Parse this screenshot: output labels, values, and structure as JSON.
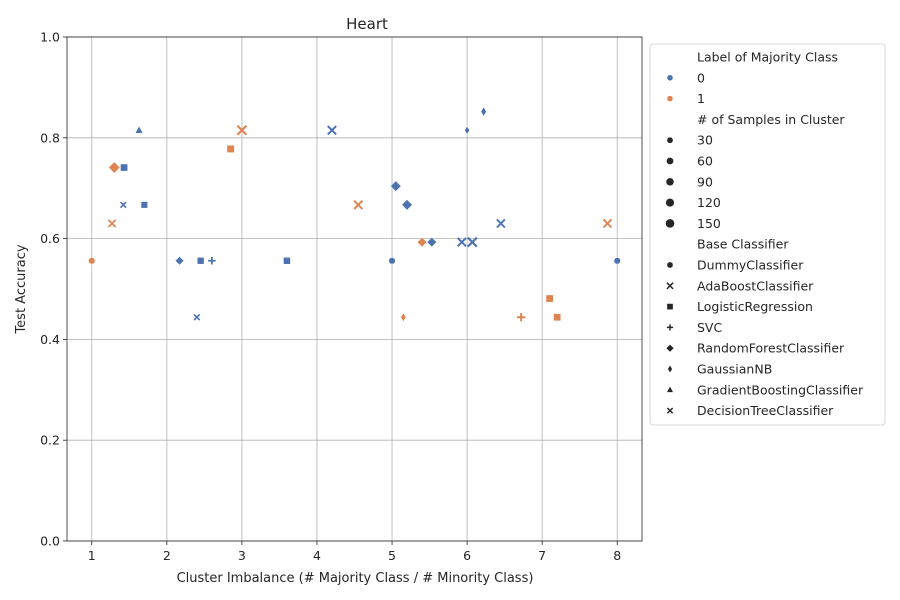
{
  "chart_data": {
    "type": "scatter",
    "title": "Heart",
    "xlabel": "Cluster Imbalance (# Majority Class / # Minority Class)",
    "ylabel": "Test Accuracy",
    "xlim": [
      0.67,
      8.33
    ],
    "ylim": [
      0.0,
      1.0
    ],
    "xticks": [
      1,
      2,
      3,
      4,
      5,
      6,
      7,
      8
    ],
    "yticks": [
      0.0,
      0.2,
      0.4,
      0.6,
      0.8,
      1.0
    ],
    "grid": true,
    "legend": {
      "placement": "outside-right",
      "hue_title": "Label of Majority Class",
      "hue": [
        {
          "label": "0",
          "color": "#4c72b0"
        },
        {
          "label": "1",
          "color": "#dd8452"
        }
      ],
      "size_title": "# of Samples in Cluster",
      "sizes": [
        "30",
        "60",
        "90",
        "120",
        "150"
      ],
      "style_title": "Base Classifier",
      "styles": [
        {
          "label": "DummyClassifier",
          "marker": "circle"
        },
        {
          "label": "AdaBoostClassifier",
          "marker": "x"
        },
        {
          "label": "LogisticRegression",
          "marker": "square"
        },
        {
          "label": "SVC",
          "marker": "plus"
        },
        {
          "label": "RandomForestClassifier",
          "marker": "diamond"
        },
        {
          "label": "GaussianNB",
          "marker": "thin-diamond"
        },
        {
          "label": "GradientBoostingClassifier",
          "marker": "triangle"
        },
        {
          "label": "DecisionTreeClassifier",
          "marker": "small-x"
        }
      ]
    },
    "points": [
      {
        "x": 1.0,
        "y": 0.556,
        "hue": "1",
        "n": 30,
        "clf": "DummyClassifier"
      },
      {
        "x": 1.27,
        "y": 0.63,
        "hue": "1",
        "n": 45,
        "clf": "AdaBoostClassifier"
      },
      {
        "x": 1.3,
        "y": 0.741,
        "hue": "1",
        "n": 120,
        "clf": "RandomForestClassifier"
      },
      {
        "x": 1.42,
        "y": 0.667,
        "hue": "0",
        "n": 30,
        "clf": "DecisionTreeClassifier"
      },
      {
        "x": 1.43,
        "y": 0.741,
        "hue": "0",
        "n": 45,
        "clf": "LogisticRegression"
      },
      {
        "x": 1.63,
        "y": 0.815,
        "hue": "0",
        "n": 45,
        "clf": "GradientBoostingClassifier"
      },
      {
        "x": 1.7,
        "y": 0.667,
        "hue": "0",
        "n": 30,
        "clf": "LogisticRegression"
      },
      {
        "x": 2.17,
        "y": 0.556,
        "hue": "0",
        "n": 35,
        "clf": "RandomForestClassifier"
      },
      {
        "x": 2.4,
        "y": 0.444,
        "hue": "0",
        "n": 30,
        "clf": "DecisionTreeClassifier"
      },
      {
        "x": 2.45,
        "y": 0.556,
        "hue": "0",
        "n": 35,
        "clf": "LogisticRegression"
      },
      {
        "x": 2.6,
        "y": 0.556,
        "hue": "0",
        "n": 55,
        "clf": "SVC"
      },
      {
        "x": 2.85,
        "y": 0.778,
        "hue": "1",
        "n": 55,
        "clf": "LogisticRegression"
      },
      {
        "x": 3.0,
        "y": 0.815,
        "hue": "1",
        "n": 120,
        "clf": "AdaBoostClassifier"
      },
      {
        "x": 3.6,
        "y": 0.556,
        "hue": "0",
        "n": 40,
        "clf": "LogisticRegression"
      },
      {
        "x": 4.2,
        "y": 0.815,
        "hue": "0",
        "n": 90,
        "clf": "AdaBoostClassifier"
      },
      {
        "x": 4.55,
        "y": 0.667,
        "hue": "1",
        "n": 90,
        "clf": "AdaBoostClassifier"
      },
      {
        "x": 5.0,
        "y": 0.556,
        "hue": "0",
        "n": 30,
        "clf": "DummyClassifier"
      },
      {
        "x": 5.05,
        "y": 0.704,
        "hue": "0",
        "n": 90,
        "clf": "RandomForestClassifier"
      },
      {
        "x": 5.15,
        "y": 0.444,
        "hue": "1",
        "n": 40,
        "clf": "GaussianNB"
      },
      {
        "x": 5.2,
        "y": 0.667,
        "hue": "0",
        "n": 90,
        "clf": "RandomForestClassifier"
      },
      {
        "x": 5.4,
        "y": 0.593,
        "hue": "1",
        "n": 60,
        "clf": "RandomForestClassifier"
      },
      {
        "x": 5.53,
        "y": 0.593,
        "hue": "0",
        "n": 60,
        "clf": "RandomForestClassifier"
      },
      {
        "x": 5.93,
        "y": 0.593,
        "hue": "0",
        "n": 90,
        "clf": "AdaBoostClassifier"
      },
      {
        "x": 6.0,
        "y": 0.815,
        "hue": "0",
        "n": 30,
        "clf": "GaussianNB"
      },
      {
        "x": 6.07,
        "y": 0.593,
        "hue": "0",
        "n": 120,
        "clf": "AdaBoostClassifier"
      },
      {
        "x": 6.22,
        "y": 0.852,
        "hue": "0",
        "n": 50,
        "clf": "GaussianNB"
      },
      {
        "x": 6.45,
        "y": 0.63,
        "hue": "0",
        "n": 75,
        "clf": "AdaBoostClassifier"
      },
      {
        "x": 6.72,
        "y": 0.444,
        "hue": "1",
        "n": 90,
        "clf": "SVC"
      },
      {
        "x": 7.1,
        "y": 0.481,
        "hue": "1",
        "n": 50,
        "clf": "LogisticRegression"
      },
      {
        "x": 7.2,
        "y": 0.444,
        "hue": "1",
        "n": 50,
        "clf": "LogisticRegression"
      },
      {
        "x": 7.87,
        "y": 0.63,
        "hue": "1",
        "n": 75,
        "clf": "AdaBoostClassifier"
      },
      {
        "x": 8.0,
        "y": 0.556,
        "hue": "0",
        "n": 30,
        "clf": "DummyClassifier"
      }
    ]
  }
}
